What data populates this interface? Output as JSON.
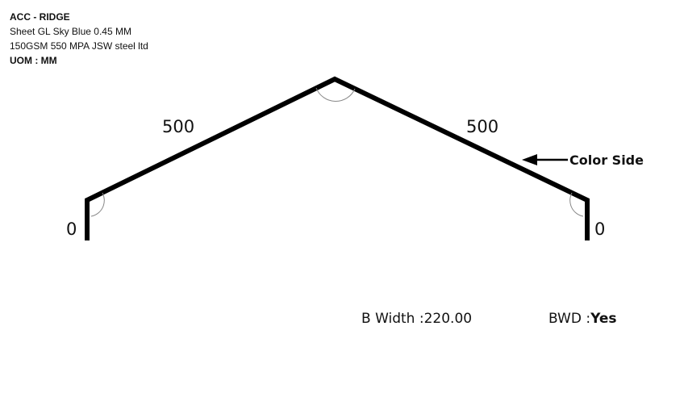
{
  "header": {
    "title": "ACC - RIDGE",
    "material_line1": "Sheet GL Sky Blue 0.45 MM",
    "material_line2": "150GSM 550 MPA JSW steel ltd",
    "uom_label": "UOM :",
    "uom_value": "MM"
  },
  "profile": {
    "left_return": "0",
    "left_slope": "500",
    "right_slope": "500",
    "right_return": "0",
    "color_side_label": "Color Side"
  },
  "footer": {
    "b_width_label": "B Width :",
    "b_width_value": "220.00",
    "bwd_label": "BWD :",
    "bwd_value": "Yes"
  }
}
